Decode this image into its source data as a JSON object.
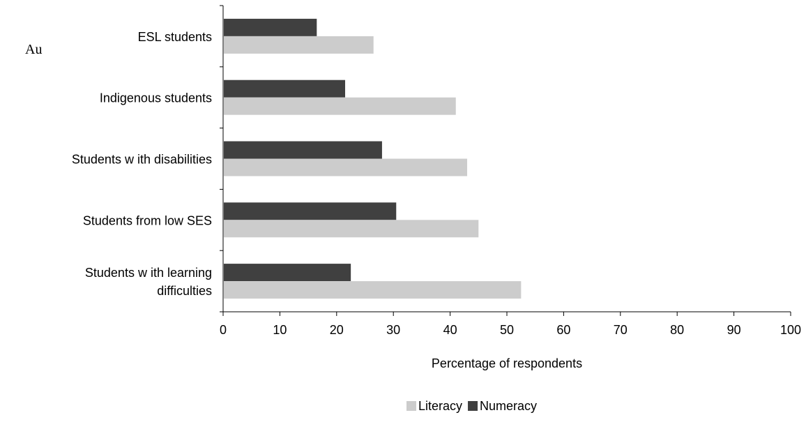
{
  "stray_text": "Au",
  "chart_data": {
    "type": "bar",
    "orientation": "horizontal",
    "title": "",
    "xlabel": "Percentage of respondents",
    "ylabel": "",
    "xlim": [
      0,
      100
    ],
    "xticks": [
      0,
      10,
      20,
      30,
      40,
      50,
      60,
      70,
      80,
      90,
      100
    ],
    "grid": false,
    "legend_position": "bottom",
    "categories": [
      [
        "ESL students"
      ],
      [
        "Indigenous students"
      ],
      [
        "Students w ith disabilities"
      ],
      [
        "Students from low  SES"
      ],
      [
        "Students w ith learning",
        "difficulties"
      ]
    ],
    "series": [
      {
        "name": "Numeracy",
        "color": "#404040",
        "values": [
          16.5,
          21.5,
          28,
          30.5,
          22.5
        ]
      },
      {
        "name": "Literacy",
        "color": "#cccccc",
        "values": [
          26.5,
          41,
          43,
          45,
          52.5
        ]
      }
    ],
    "legend_order": [
      "Literacy",
      "Numeracy"
    ]
  }
}
